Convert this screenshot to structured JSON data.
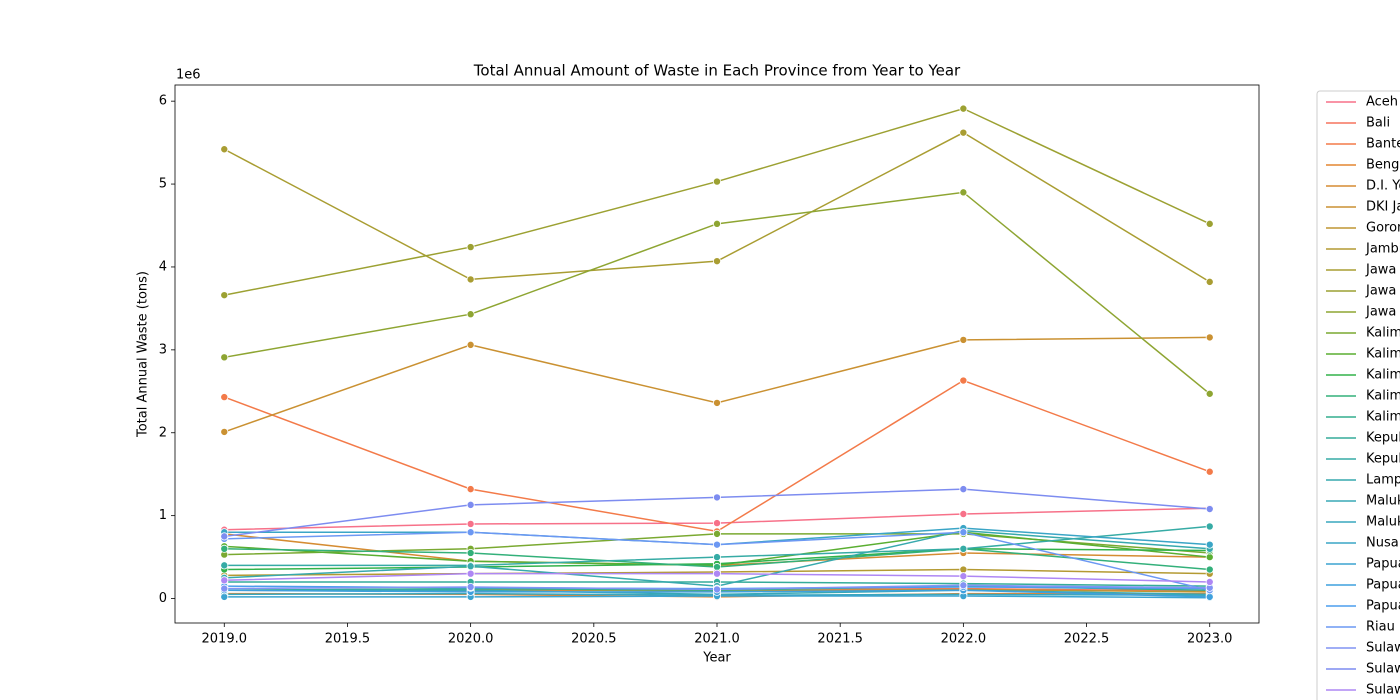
{
  "chart_data": {
    "type": "line",
    "title": "Total Annual Amount of Waste in Each Province from Year to Year",
    "xlabel": "Year",
    "ylabel": "Total Annual Waste (tons)",
    "y_offset_label": "1e6",
    "x": [
      2019,
      2020,
      2021,
      2022,
      2023
    ],
    "xlim": [
      2018.8,
      2023.2
    ],
    "xticks": [
      {
        "value": 2019,
        "label": "2019.0"
      },
      2019.5,
      {
        "value": 2020,
        "label": "2020.0"
      },
      2020.5,
      {
        "value": 2021,
        "label": "2021.0"
      },
      2021.5,
      {
        "value": 2022,
        "label": "2022.0"
      },
      2022.5,
      {
        "value": 2023,
        "label": "2023.0"
      }
    ],
    "ylim": [
      -295000,
      6195000
    ],
    "yticks": [
      {
        "value": 0,
        "label": "0"
      },
      {
        "value": 1000000,
        "label": "1"
      },
      {
        "value": 2000000,
        "label": "2"
      },
      {
        "value": 3000000,
        "label": "3"
      },
      {
        "value": 4000000,
        "label": "4"
      },
      {
        "value": 5000000,
        "label": "5"
      },
      {
        "value": 6000000,
        "label": "6"
      }
    ],
    "grid": false,
    "legend": "outside right",
    "markers": true,
    "series": [
      {
        "name": "Aceh",
        "color": "#f77189",
        "values": [
          830000,
          900000,
          910000,
          1020000,
          1090000
        ]
      },
      {
        "name": "Bali",
        "color": "#f6745f",
        "values": [
          100000,
          90000,
          110000,
          120000,
          90000
        ]
      },
      {
        "name": "Banten",
        "color": "#f37a49",
        "values": [
          2430000,
          1320000,
          810000,
          2630000,
          1530000
        ]
      },
      {
        "name": "Bengkulu",
        "color": "#e38531",
        "values": [
          60000,
          50000,
          20000,
          60000,
          60000
        ]
      },
      {
        "name": "D.I. Yogyakarta",
        "color": "#d58c32",
        "values": [
          780000,
          450000,
          400000,
          550000,
          500000
        ]
      },
      {
        "name": "DKI Jakarta",
        "color": "#ca9132",
        "values": [
          2010000,
          3060000,
          2360000,
          3120000,
          3150000
        ]
      },
      {
        "name": "Gorontalo",
        "color": "#bf9532",
        "values": [
          100000,
          110000,
          90000,
          110000,
          80000
        ]
      },
      {
        "name": "Jambi",
        "color": "#b49a32",
        "values": [
          280000,
          300000,
          320000,
          350000,
          300000
        ]
      },
      {
        "name": "Jawa Barat",
        "color": "#a99d32",
        "values": [
          5420000,
          3850000,
          4070000,
          5620000,
          3820000
        ]
      },
      {
        "name": "Jawa Tengah",
        "color": "#9ca132",
        "values": [
          3660000,
          4240000,
          5030000,
          5910000,
          4520000
        ]
      },
      {
        "name": "Jawa Timur",
        "color": "#8ea532",
        "values": [
          2910000,
          3430000,
          4520000,
          4900000,
          2470000
        ]
      },
      {
        "name": "Kalimantan Barat",
        "color": "#7aa931",
        "values": [
          530000,
          600000,
          780000,
          780000,
          550000
        ]
      },
      {
        "name": "Kalimantan Selatan",
        "color": "#5aae31",
        "values": [
          630000,
          450000,
          400000,
          800000,
          500000
        ]
      },
      {
        "name": "Kalimantan Tengah",
        "color": "#32b24a",
        "values": [
          350000,
          380000,
          420000,
          600000,
          580000
        ]
      },
      {
        "name": "Kalimantan Timur",
        "color": "#33b07a",
        "values": [
          600000,
          550000,
          380000,
          600000,
          350000
        ]
      },
      {
        "name": "Kalimantan Utara",
        "color": "#34ae8d",
        "values": [
          100000,
          120000,
          100000,
          150000,
          100000
        ]
      },
      {
        "name": "Kepulauan Bangka Belitung",
        "color": "#35ac9a",
        "values": [
          200000,
          200000,
          200000,
          180000,
          150000
        ]
      },
      {
        "name": "Kepulauan Riau",
        "color": "#36aba5",
        "values": [
          400000,
          400000,
          500000,
          600000,
          870000
        ]
      },
      {
        "name": "Lampung",
        "color": "#37a9ad",
        "values": [
          250000,
          390000,
          150000,
          820000,
          600000
        ]
      },
      {
        "name": "Maluku",
        "color": "#38a8b5",
        "values": [
          100000,
          100000,
          50000,
          100000,
          50000
        ]
      },
      {
        "name": "Maluku Utara",
        "color": "#39a7bd",
        "values": [
          50000,
          60000,
          40000,
          50000,
          40000
        ]
      },
      {
        "name": "Nusa Tenggara Barat",
        "color": "#3aa5c6",
        "values": [
          800000,
          800000,
          650000,
          850000,
          650000
        ]
      },
      {
        "name": "Papua",
        "color": "#3ba3d0",
        "values": [
          20000,
          20000,
          30000,
          30000,
          10000
        ]
      },
      {
        "name": "Papua Barat",
        "color": "#3fa0dd",
        "values": [
          100000,
          80000,
          80000,
          100000,
          20000
        ]
      },
      {
        "name": "Papua Barat Daya",
        "color": "#4c9ded",
        "values": [
          150000,
          130000,
          120000,
          140000,
          120000
        ]
      },
      {
        "name": "Riau",
        "color": "#6c98f3",
        "values": [
          720000,
          800000,
          650000,
          800000,
          100000
        ]
      },
      {
        "name": "Sulawesi Barat",
        "color": "#8193f4",
        "values": [
          120000,
          140000,
          110000,
          160000,
          130000
        ]
      },
      {
        "name": "Sulawesi Selatan",
        "color": "#7d8cf0",
        "values": [
          750000,
          1130000,
          1220000,
          1320000,
          1080000
        ]
      },
      {
        "name": "Sulawesi Tengah",
        "color": "#ae87f4",
        "values": [
          220000,
          300000,
          300000,
          270000,
          200000
        ]
      }
    ]
  }
}
